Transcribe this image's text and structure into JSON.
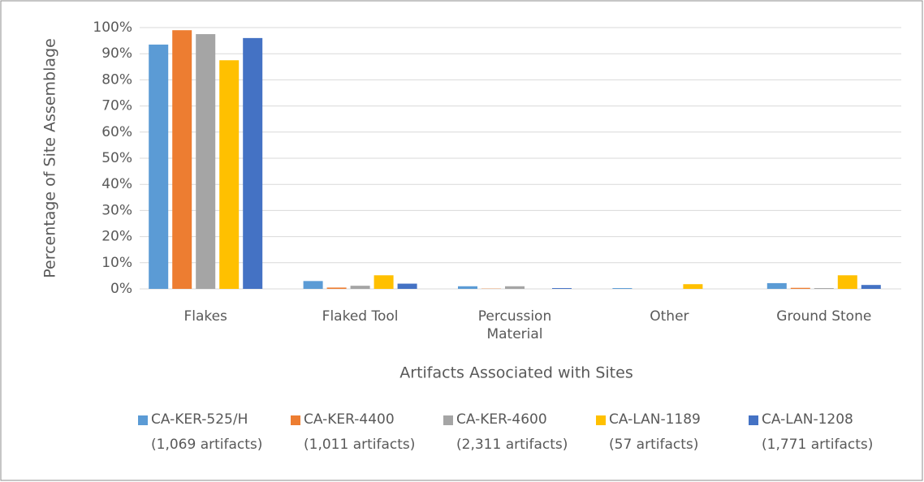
{
  "chart_data": {
    "type": "bar",
    "x_label": "Artifacts Associated with Sites",
    "y_label": "Percentage of Site Assemblage",
    "categories": [
      "Flakes",
      "Flaked Tool",
      "Percussion Material",
      "Other",
      "Ground Stone"
    ],
    "series": [
      {
        "name": "CA-KER-525/H\n(1,069 artifacts)",
        "color": "#5b9bd5",
        "values": [
          93.5,
          3,
          1,
          0.3,
          2.2
        ]
      },
      {
        "name": "CA-KER-4400\n(1,011 artifacts)",
        "color": "#ed7d31",
        "values": [
          99,
          0.5,
          0.1,
          0,
          0.4
        ]
      },
      {
        "name": "CA-KER-4600\n(2,311 artifacts)",
        "color": "#a5a5a5",
        "values": [
          97.5,
          1.2,
          1,
          0,
          0.3
        ]
      },
      {
        "name": "CA-LAN-1189\n(57 artifacts)",
        "color": "#ffc000",
        "values": [
          87.5,
          5.2,
          0,
          1.8,
          5.2
        ]
      },
      {
        "name": "CA-LAN-1208\n(1,771 artifacts)",
        "color": "#4472c4",
        "values": [
          96,
          2,
          0.3,
          0,
          1.5
        ]
      }
    ],
    "ylim": [
      0,
      100
    ],
    "yticks": [
      {
        "value": 0,
        "label": "0%"
      },
      {
        "value": 10,
        "label": "10%"
      },
      {
        "value": 20,
        "label": "20%"
      },
      {
        "value": 30,
        "label": "30%"
      },
      {
        "value": 40,
        "label": "40%"
      },
      {
        "value": 50,
        "label": "50%"
      },
      {
        "value": 60,
        "label": "60%"
      },
      {
        "value": 70,
        "label": "70%"
      },
      {
        "value": 80,
        "label": "80%"
      },
      {
        "value": 90,
        "label": "90%"
      },
      {
        "value": 100,
        "label": "100%"
      }
    ],
    "grid": true,
    "legend": "bottom"
  }
}
